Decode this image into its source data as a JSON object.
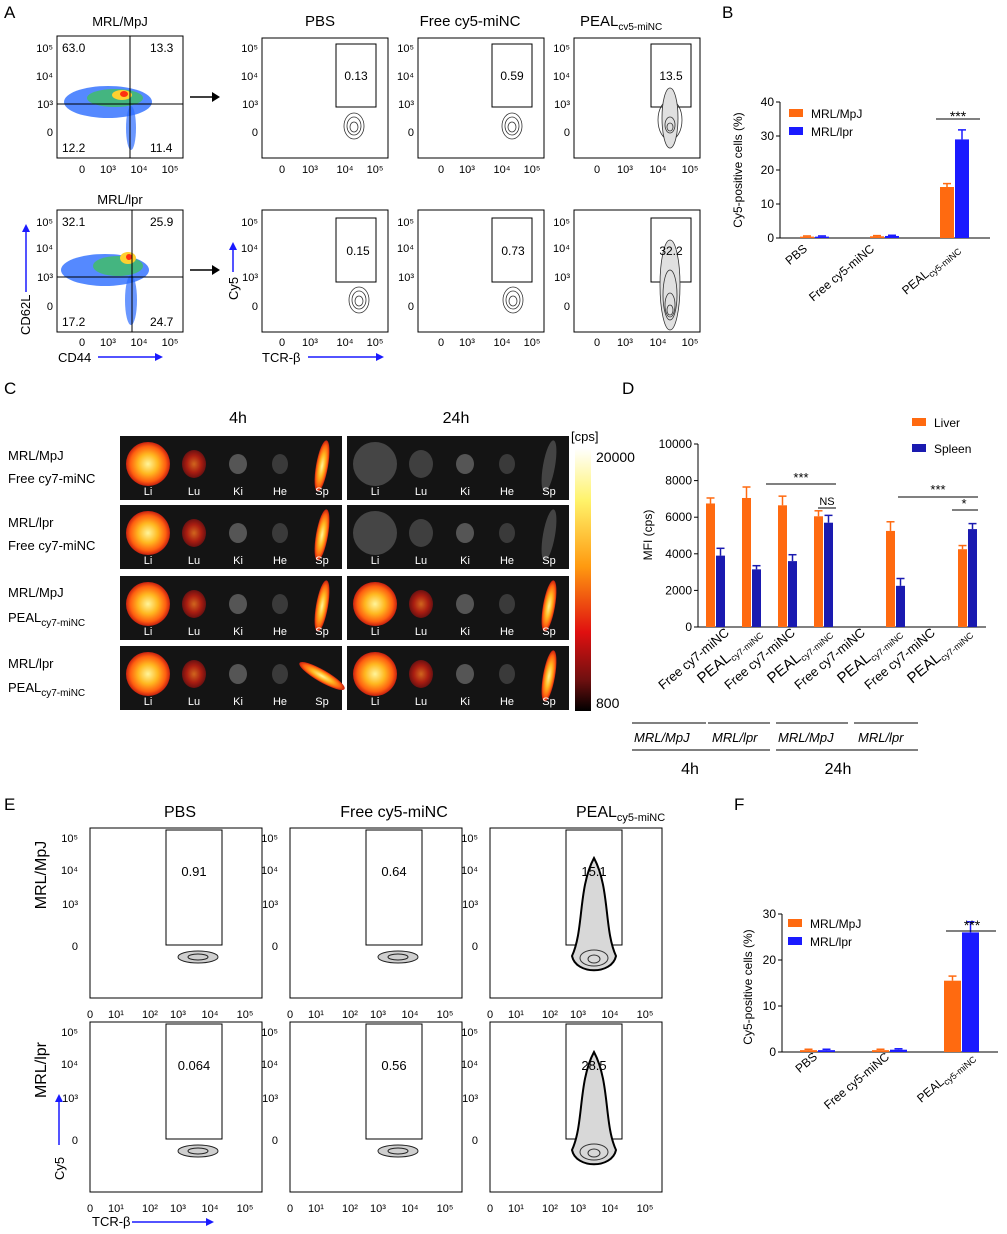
{
  "panels": {
    "A": {
      "letter": "A",
      "strains": [
        "MRL/MpJ",
        "MRL/lpr"
      ],
      "cols": [
        "PBS",
        "Free cy5-miNC",
        "PEAL"
      ],
      "peal_sub": "cv5-miNC",
      "quadrants": [
        {
          "tl": "63.0",
          "tr": "13.3",
          "bl": "12.2",
          "br": "11.4"
        },
        {
          "tl": "32.1",
          "tr": "25.9",
          "bl": "17.2",
          "br": "24.7"
        }
      ],
      "gates": [
        [
          "0.13",
          "0.59",
          "13.5"
        ],
        [
          "0.15",
          "0.73",
          "32.2"
        ]
      ],
      "x_label_left": "CD44",
      "y_label_left": "CD62L",
      "x_label_right": "TCR-β",
      "y_label_right": "Cy5",
      "ticks_y": [
        "10⁵",
        "10⁴",
        "10³",
        "0"
      ],
      "ticks_x": [
        "0",
        "10³",
        "10⁴",
        "10⁵"
      ]
    },
    "B": {
      "letter": "B",
      "ylabel": "Cy5-positive cells (%)",
      "sig": "***",
      "categories": [
        "PBS",
        "Free cy5-miNC",
        "PEAL"
      ],
      "cat_sub": "cy5-miNC"
    },
    "C": {
      "letter": "C",
      "times": [
        "4h",
        "24h"
      ],
      "rows": [
        {
          "l1": "MRL/MpJ",
          "l2": "Free cy7-miNC",
          "sub": ""
        },
        {
          "l1": "MRL/lpr",
          "l2": "Free cy7-miNC",
          "sub": ""
        },
        {
          "l1": "MRL/MpJ",
          "l2": "PEAL",
          "sub": "cy7-miNC"
        },
        {
          "l1": "MRL/lpr",
          "l2": "PEAL",
          "sub": "cy7-miNC"
        }
      ],
      "organs": [
        "Li",
        "Lu",
        "Ki",
        "He",
        "Sp"
      ],
      "scale_unit": "[cps]",
      "scale_max": "20000",
      "scale_min": "800"
    },
    "D": {
      "letter": "D",
      "ylabel": "MFI (cps)",
      "sig_a": "***",
      "sig_ns": "NS",
      "sig_b": "***",
      "sig_c": "*",
      "x_free": "Free cy7-miNC",
      "x_peal": "PEAL",
      "x_peal_sub": "cy7-miNC",
      "group_strains": [
        "MRL/MpJ",
        "MRL/lpr",
        "MRL/MpJ",
        "MRL/lpr"
      ],
      "group_times": [
        "4h",
        "24h"
      ]
    },
    "E": {
      "letter": "E",
      "strains": [
        "MRL/MpJ",
        "MRL/lpr"
      ],
      "cols": [
        "PBS",
        "Free cy5-miNC",
        "PEAL"
      ],
      "peal_sub": "cy5-miNC",
      "gates": [
        [
          "0.91",
          "0.64",
          "15.1"
        ],
        [
          "0.064",
          "0.56",
          "28.5"
        ]
      ],
      "x_label": "TCR-β",
      "y_label": "Cy5",
      "ticks_y": [
        "10⁵",
        "10⁴",
        "10³",
        "0"
      ],
      "ticks_x": [
        "0",
        "10¹",
        "10²",
        "10³",
        "10⁴",
        "10⁵"
      ]
    },
    "F": {
      "letter": "F",
      "ylabel": "Cy5-positive cells (%)",
      "sig": "***",
      "categories": [
        "PBS",
        "Free cy5-miNC",
        "PEAL"
      ],
      "cat_sub": "cy5-miNC"
    }
  },
  "chart_data": [
    {
      "panel": "B",
      "type": "bar",
      "categories": [
        "PBS",
        "Free cy5-miNC",
        "PEAL cy5-miNC"
      ],
      "series": [
        {
          "name": "MRL/MpJ",
          "color": "#ff6a10",
          "values": [
            0.4,
            0.5,
            15.0
          ],
          "errors": [
            0.2,
            0.2,
            1.0
          ]
        },
        {
          "name": "MRL/lpr",
          "color": "#1a1aff",
          "values": [
            0.4,
            0.6,
            29.0
          ],
          "errors": [
            0.2,
            0.2,
            2.8
          ]
        }
      ],
      "ylabel": "Cy5-positive cells (%)",
      "ylim": [
        0,
        40
      ],
      "yticks": [
        0,
        10,
        20,
        30,
        40
      ],
      "legend": "top-left",
      "annotations": [
        {
          "text": "***",
          "between": [
            2,
            2
          ]
        }
      ]
    },
    {
      "panel": "D",
      "type": "bar",
      "categories": [
        "Free cy7-miNC",
        "PEAL cy7-miNC",
        "Free cy7-miNC",
        "PEAL cy7-miNC",
        "Free cy7-miNC",
        "PEAL cy7-miNC",
        "Free cy7-miNC",
        "PEAL cy7-miNC"
      ],
      "series": [
        {
          "name": "Liver",
          "color": "#ff6a10",
          "values": [
            6750,
            7050,
            6650,
            6050,
            0,
            5250,
            0,
            4250
          ],
          "errors": [
            300,
            600,
            500,
            300,
            0,
            500,
            0,
            200
          ]
        },
        {
          "name": "Spleen",
          "color": "#1a1ab0",
          "values": [
            3900,
            3150,
            3600,
            5700,
            0,
            2250,
            0,
            5350
          ],
          "errors": [
            400,
            200,
            350,
            400,
            0,
            400,
            0,
            300
          ]
        }
      ],
      "ylabel": "MFI (cps)",
      "ylim": [
        0,
        10000
      ],
      "yticks": [
        0,
        2000,
        4000,
        6000,
        8000,
        10000
      ],
      "legend": "top-right",
      "annotations": [
        "***",
        "NS",
        "***",
        "*"
      ]
    },
    {
      "panel": "F",
      "type": "bar",
      "categories": [
        "PBS",
        "Free cy5-miNC",
        "PEAL cy5-miNC"
      ],
      "series": [
        {
          "name": "MRL/MpJ",
          "color": "#ff6a10",
          "values": [
            0.4,
            0.4,
            15.5
          ],
          "errors": [
            0.2,
            0.2,
            1.0
          ]
        },
        {
          "name": "MRL/lpr",
          "color": "#1a1aff",
          "values": [
            0.4,
            0.5,
            26.0
          ],
          "errors": [
            0.2,
            0.2,
            2.3
          ]
        }
      ],
      "ylabel": "Cy5-positive cells (%)",
      "ylim": [
        0,
        30
      ],
      "yticks": [
        0,
        10,
        20,
        30
      ],
      "legend": "top-left",
      "annotations": [
        {
          "text": "***",
          "between": [
            2,
            2
          ]
        }
      ]
    }
  ]
}
